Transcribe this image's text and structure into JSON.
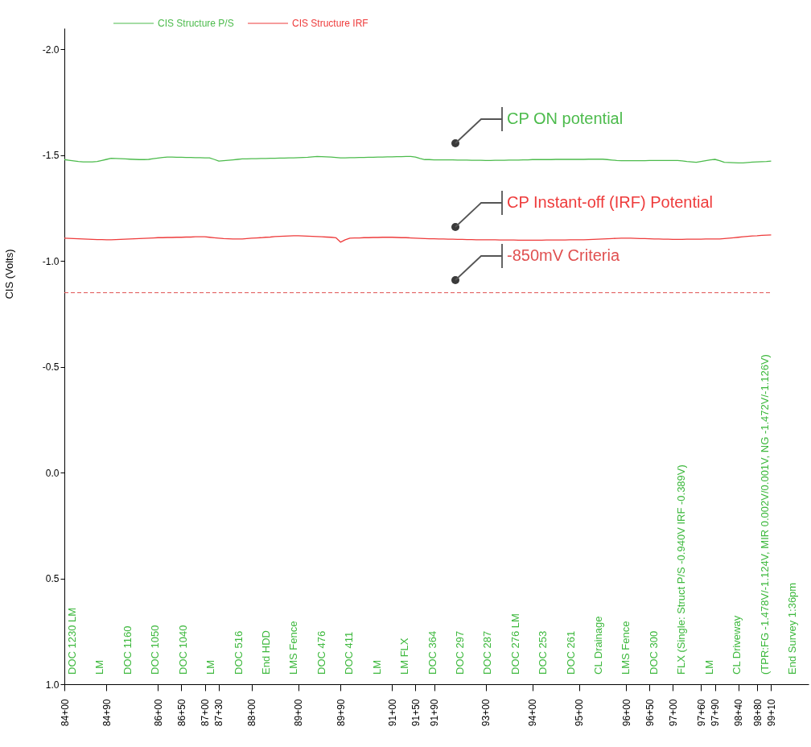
{
  "chart_data": {
    "type": "line",
    "ylabel": "CIS (Volts)",
    "legend": "top",
    "grid": false,
    "ylim": [
      1.0,
      -2.1
    ],
    "yticks": [
      {
        "value": -2,
        "label": "-2.0"
      },
      {
        "value": -1.5,
        "label": "-1.5"
      },
      {
        "value": -1,
        "label": "-1.0"
      },
      {
        "value": -0.5,
        "label": "-0.5"
      },
      {
        "value": 0,
        "label": "0.0"
      },
      {
        "value": 0.5,
        "label": "0.5"
      },
      {
        "value": 1,
        "label": "1.0"
      }
    ],
    "categories": [
      "84+00",
      null,
      null,
      null,
      null,
      null,
      null,
      null,
      null,
      "84+90",
      null,
      null,
      null,
      null,
      null,
      null,
      null,
      null,
      null,
      null,
      "86+00",
      null,
      null,
      null,
      null,
      "86+50",
      null,
      null,
      null,
      null,
      "87+00",
      null,
      null,
      "87+30",
      null,
      null,
      null,
      null,
      null,
      null,
      "88+00",
      null,
      null,
      null,
      null,
      null,
      null,
      null,
      null,
      null,
      "89+00",
      null,
      null,
      null,
      null,
      null,
      null,
      null,
      null,
      "89+90",
      null,
      null,
      null,
      null,
      null,
      null,
      null,
      null,
      null,
      null,
      "91+00",
      null,
      null,
      null,
      null,
      "91+50",
      null,
      null,
      null,
      "91+90",
      null,
      null,
      null,
      null,
      null,
      null,
      null,
      null,
      null,
      null,
      "93+00",
      null,
      null,
      null,
      null,
      null,
      null,
      null,
      null,
      null,
      "94+00",
      null,
      null,
      null,
      null,
      null,
      null,
      null,
      null,
      null,
      "95+00",
      null,
      null,
      null,
      null,
      null,
      null,
      null,
      null,
      null,
      "96+00",
      null,
      null,
      null,
      null,
      "96+50",
      null,
      null,
      null,
      null,
      "97+00",
      null,
      null,
      null,
      null,
      null,
      "97+60",
      null,
      null,
      "97+90",
      null,
      null,
      null,
      null,
      "98+40",
      null,
      null,
      null,
      "98+80",
      null,
      null,
      "99+10",
      null,
      null,
      null,
      null,
      null,
      null,
      null,
      null
    ],
    "series": [
      {
        "name": "CIS Structure P/S",
        "color": "#4cbb4c",
        "values": [
          -1.479,
          -1.476,
          -1.473,
          -1.47,
          -1.468,
          -1.468,
          -1.468,
          -1.47,
          -1.475,
          -1.48,
          -1.485,
          -1.484,
          -1.483,
          -1.482,
          -1.481,
          -1.48,
          -1.479,
          -1.479,
          -1.48,
          -1.483,
          -1.486,
          -1.489,
          -1.491,
          -1.491,
          -1.49,
          -1.49,
          -1.489,
          -1.489,
          -1.488,
          -1.488,
          -1.487,
          -1.487,
          -1.48,
          -1.472,
          -1.474,
          -1.476,
          -1.478,
          -1.48,
          -1.482,
          -1.482,
          -1.483,
          -1.483,
          -1.484,
          -1.484,
          -1.485,
          -1.485,
          -1.486,
          -1.486,
          -1.487,
          -1.487,
          -1.488,
          -1.489,
          -1.49,
          -1.492,
          -1.494,
          -1.493,
          -1.492,
          -1.491,
          -1.489,
          -1.487,
          -1.487,
          -1.488,
          -1.488,
          -1.489,
          -1.489,
          -1.49,
          -1.49,
          -1.491,
          -1.491,
          -1.492,
          -1.492,
          -1.493,
          -1.493,
          -1.494,
          -1.494,
          -1.491,
          -1.484,
          -1.479,
          -1.479,
          -1.478,
          -1.478,
          -1.478,
          -1.478,
          -1.478,
          -1.477,
          -1.477,
          -1.477,
          -1.476,
          -1.476,
          -1.476,
          -1.475,
          -1.475,
          -1.476,
          -1.476,
          -1.476,
          -1.477,
          -1.477,
          -1.477,
          -1.478,
          -1.478,
          -1.479,
          -1.479,
          -1.479,
          -1.479,
          -1.479,
          -1.48,
          -1.48,
          -1.48,
          -1.48,
          -1.48,
          -1.48,
          -1.48,
          -1.481,
          -1.481,
          -1.481,
          -1.481,
          -1.479,
          -1.477,
          -1.475,
          -1.474,
          -1.474,
          -1.474,
          -1.474,
          -1.474,
          -1.474,
          -1.475,
          -1.475,
          -1.475,
          -1.475,
          -1.475,
          -1.475,
          -1.475,
          -1.473,
          -1.47,
          -1.468,
          -1.466,
          -1.47,
          -1.474,
          -1.478,
          -1.48,
          -1.474,
          -1.466,
          -1.465,
          -1.464,
          -1.463,
          -1.463,
          -1.465,
          -1.467,
          -1.468,
          -1.469,
          -1.47,
          -1.472,
          null,
          null,
          null,
          null,
          null,
          null,
          null,
          null
        ]
      },
      {
        "name": "CIS Structure IRF",
        "color": "#ee3b3b",
        "values": [
          -1.108,
          -1.107,
          -1.106,
          -1.105,
          -1.104,
          -1.103,
          -1.102,
          -1.101,
          -1.101,
          -1.1,
          -1.1,
          -1.101,
          -1.102,
          -1.103,
          -1.104,
          -1.105,
          -1.106,
          -1.107,
          -1.108,
          -1.109,
          -1.11,
          -1.11,
          -1.111,
          -1.111,
          -1.112,
          -1.112,
          -1.113,
          -1.113,
          -1.114,
          -1.114,
          -1.114,
          -1.112,
          -1.11,
          -1.108,
          -1.106,
          -1.105,
          -1.104,
          -1.104,
          -1.104,
          -1.106,
          -1.108,
          -1.109,
          -1.11,
          -1.112,
          -1.113,
          -1.115,
          -1.116,
          -1.117,
          -1.118,
          -1.119,
          -1.119,
          -1.118,
          -1.117,
          -1.116,
          -1.115,
          -1.114,
          -1.113,
          -1.112,
          -1.11,
          -1.089,
          -1.1,
          -1.108,
          -1.109,
          -1.109,
          -1.11,
          -1.11,
          -1.111,
          -1.111,
          -1.112,
          -1.112,
          -1.112,
          -1.111,
          -1.11,
          -1.11,
          -1.109,
          -1.108,
          -1.107,
          -1.106,
          -1.105,
          -1.105,
          -1.104,
          -1.104,
          -1.103,
          -1.103,
          -1.102,
          -1.102,
          -1.101,
          -1.101,
          -1.1,
          -1.1,
          -1.1,
          -1.1,
          -1.1,
          -1.099,
          -1.099,
          -1.099,
          -1.099,
          -1.098,
          -1.098,
          -1.098,
          -1.098,
          -1.098,
          -1.098,
          -1.099,
          -1.099,
          -1.099,
          -1.099,
          -1.099,
          -1.1,
          -1.1,
          -1.1,
          -1.1,
          -1.101,
          -1.102,
          -1.103,
          -1.104,
          -1.105,
          -1.106,
          -1.107,
          -1.108,
          -1.108,
          -1.108,
          -1.107,
          -1.106,
          -1.106,
          -1.105,
          -1.104,
          -1.104,
          -1.103,
          -1.103,
          -1.102,
          -1.102,
          -1.102,
          -1.103,
          -1.103,
          -1.103,
          -1.103,
          -1.104,
          -1.104,
          -1.104,
          -1.104,
          -1.106,
          -1.108,
          -1.11,
          -1.112,
          -1.114,
          -1.116,
          -1.118,
          -1.119,
          -1.121,
          -1.122,
          -1.123,
          null,
          null,
          null,
          null,
          null,
          null,
          null,
          null
        ]
      }
    ],
    "ref_lines": [
      {
        "axis": "y",
        "value": -0.85,
        "label": "-850mV Criteria",
        "color": "#e05050",
        "line_style": "dashed"
      }
    ],
    "annotations": [
      "CP ON potential",
      "CP Instant-off (IRF) Potential",
      "DOC 1230 LM",
      "LM",
      "DOC 1160",
      "DOC 1050",
      "DOC 1040",
      "LM",
      "DOC 516",
      "End HDD",
      "LMS Fence",
      "DOC 476",
      "DOC 411",
      "LM",
      "LM FLX",
      "DOC 364",
      "DOC 297",
      "DOC 287",
      "DOC 276 LM",
      "DOC 253",
      "DOC 261",
      "CL Drainage",
      "LMS Fence",
      "DOC 300",
      "FLX   (Single: Struct P/S -0.940V IRF -0.389V)",
      "LM",
      "CL Driveway",
      "(TPR:FG -1.478V/-1.124V, MIR 0.002V/0.001V, NG -1.472V/-1.126V)",
      "End Survey 1:36pm"
    ]
  }
}
